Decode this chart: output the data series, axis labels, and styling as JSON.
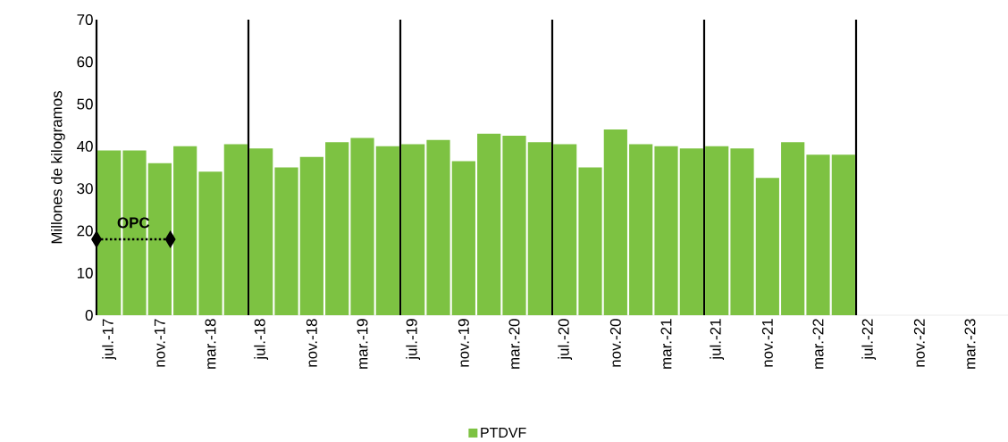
{
  "chart_data": {
    "type": "bar",
    "ylabel": "Millones de kilogramos",
    "x": [
      "2017-07",
      "2017-09",
      "2017-11",
      "2018-01",
      "2018-03",
      "2018-05",
      "2018-07",
      "2018-09",
      "2018-11",
      "2019-01",
      "2019-03",
      "2019-05",
      "2019-07",
      "2019-09",
      "2019-11",
      "2020-01",
      "2020-03",
      "2020-05",
      "2020-07",
      "2020-09",
      "2020-11",
      "2021-01",
      "2021-03",
      "2021-05",
      "2021-07",
      "2021-09",
      "2021-11",
      "2022-01",
      "2022-03",
      "2022-05"
    ],
    "series": [
      {
        "name": "PTDVF",
        "color": "#7dc242",
        "values": [
          39,
          39,
          36,
          40,
          34,
          40.5,
          39.5,
          35,
          37.5,
          41,
          42,
          40,
          40.5,
          41.5,
          36.5,
          43,
          42.5,
          41,
          40.5,
          35,
          44,
          40.5,
          40,
          39.5,
          40,
          39.5,
          32.5,
          41,
          38,
          38
        ]
      }
    ],
    "xlim": [
      "2017-06",
      "2023-06"
    ],
    "ylim": [
      0,
      70
    ],
    "yticks": [
      0,
      10,
      20,
      30,
      40,
      50,
      60,
      70
    ],
    "xticks": [
      {
        "value": "2017-07",
        "label": "jul.-17"
      },
      {
        "value": "2017-11",
        "label": "nov.-17"
      },
      {
        "value": "2018-03",
        "label": "mar.-18"
      },
      {
        "value": "2018-07",
        "label": "jul.-18"
      },
      {
        "value": "2018-11",
        "label": "nov.-18"
      },
      {
        "value": "2019-03",
        "label": "mar.-19"
      },
      {
        "value": "2019-07",
        "label": "jul.-19"
      },
      {
        "value": "2019-11",
        "label": "nov.-19"
      },
      {
        "value": "2020-03",
        "label": "mar.-20"
      },
      {
        "value": "2020-07",
        "label": "jul.-20"
      },
      {
        "value": "2020-11",
        "label": "nov.-20"
      },
      {
        "value": "2021-03",
        "label": "mar.-21"
      },
      {
        "value": "2021-07",
        "label": "jul.-21"
      },
      {
        "value": "2021-11",
        "label": "nov.-21"
      },
      {
        "value": "2022-03",
        "label": "mar.-22"
      },
      {
        "value": "2022-07",
        "label": "jul.-22"
      },
      {
        "value": "2022-11",
        "label": "nov.-22"
      },
      {
        "value": "2023-03",
        "label": "mar.-23"
      }
    ],
    "ref_lines": [
      {
        "axis": "x",
        "value": "2017-06",
        "color": "#000000"
      },
      {
        "axis": "x",
        "value": "2018-06",
        "color": "#000000"
      },
      {
        "axis": "x",
        "value": "2019-06",
        "color": "#000000"
      },
      {
        "axis": "x",
        "value": "2020-06",
        "color": "#000000"
      },
      {
        "axis": "x",
        "value": "2021-06",
        "color": "#000000"
      },
      {
        "axis": "x",
        "value": "2022-06",
        "color": "#000000"
      }
    ],
    "annotations": [
      "OPC"
    ],
    "grid": false,
    "legend": "bottom"
  }
}
